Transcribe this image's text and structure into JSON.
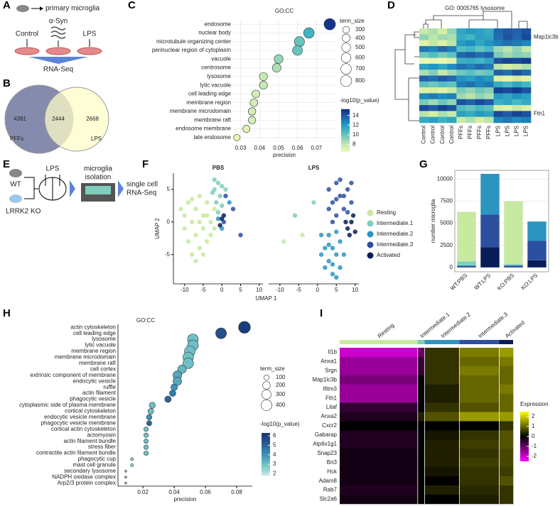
{
  "panel_labels": [
    "A",
    "B",
    "C",
    "D",
    "E",
    "F",
    "G",
    "H",
    "I"
  ],
  "diagram_a": {
    "top": "primary microglia",
    "treatment": "α-Syn",
    "control": "Control",
    "lps": "LPS",
    "output": "RNA-Seq"
  },
  "diagram_e": {
    "wt": "WT",
    "ko": "LRRK2 KO",
    "lps": "LPS",
    "isolation": [
      "microglia",
      "isolation"
    ],
    "output": [
      "single cell",
      "RNA-Seq"
    ]
  },
  "chart_data": [
    {
      "type": "venn",
      "sets": [
        "PFFs",
        "LPS"
      ],
      "values": [
        4381,
        2444,
        2668
      ],
      "colors": [
        "#5c6491",
        "#fdfcc8"
      ]
    },
    {
      "type": "dot",
      "title": "GO:CC",
      "xlabel": "precision",
      "categories": [
        "endosome",
        "nuclear body",
        "microtubule organizing center",
        "perinuclear region of cytoplasm",
        "vacuole",
        "centrosome",
        "lysosome",
        "lytic vacuole",
        "cell leading edge",
        "membrane region",
        "membrane microdomain",
        "membrane raft",
        "endosome membrane",
        "late endosome"
      ],
      "values": [
        0.077,
        0.066,
        0.061,
        0.06,
        0.05,
        0.049,
        0.042,
        0.042,
        0.038,
        0.037,
        0.036,
        0.036,
        0.033,
        0.028
      ],
      "size": [
        820,
        700,
        650,
        620,
        500,
        480,
        420,
        410,
        380,
        380,
        360,
        360,
        330,
        260
      ],
      "pvalue": [
        15,
        11,
        10,
        10,
        9,
        8.5,
        8,
        8,
        7.5,
        7.5,
        7.5,
        7.5,
        7,
        6.5
      ],
      "xlim": [
        0.026,
        0.08
      ],
      "xticks": [
        0.03,
        0.04,
        0.05,
        0.06,
        0.07
      ],
      "size_label": "term_size",
      "size_ticks": [
        300,
        400,
        500,
        600,
        700,
        800
      ],
      "color_label": "-log10(p_value)",
      "color_ticks": [
        8,
        10,
        12,
        14
      ],
      "clim": [
        6.5,
        15.3
      ],
      "colormap": [
        "#edf8b1",
        "#c7e9b4",
        "#7fcdbb",
        "#41b6c4",
        "#1d91c0",
        "#225ea8",
        "#0c2c84"
      ],
      "grid": true
    },
    {
      "type": "heatmap",
      "title": "GO: 0005765 lysosome",
      "columns": [
        "Control",
        "Control",
        "Control",
        "Control",
        "PFFs",
        "PFFs",
        "PFFs",
        "PFFs",
        "LPS",
        "LPS",
        "LPS",
        "LPS"
      ],
      "row_labels": [
        null,
        "Map1lc3b",
        null,
        null,
        null,
        null,
        null,
        null,
        null,
        null,
        null,
        null,
        null,
        null,
        "Fth1",
        null
      ],
      "values": [
        [
          -1.2,
          -1,
          -1.3,
          -0.8,
          0.3,
          0.5,
          0.4,
          0.2,
          1.2,
          1.4,
          1.3,
          1.5
        ],
        [
          -0.8,
          -1.1,
          -0.9,
          -1,
          0.2,
          0,
          0.4,
          0.3,
          1.1,
          1.5,
          1.2,
          1.6
        ],
        [
          -1.5,
          -1.2,
          -1.4,
          -1.1,
          0.5,
          0.7,
          0.3,
          0.6,
          0.9,
          1.1,
          1,
          0.8
        ],
        [
          1,
          0.8,
          1.2,
          0.9,
          -0.2,
          0,
          -0.4,
          -0.1,
          -0.9,
          -1.1,
          -0.8,
          -1.2
        ],
        [
          -0.5,
          -0.2,
          -0.6,
          -0.3,
          1.2,
          1.4,
          1.1,
          1.3,
          -0.6,
          -0.9,
          -0.7,
          -0.8
        ],
        [
          -1.8,
          -1.6,
          -1.7,
          -1.5,
          0.1,
          0.2,
          0,
          0.3,
          1.5,
          1.7,
          1.6,
          1.8
        ],
        [
          0.4,
          0.6,
          0.3,
          0.7,
          1.1,
          0.9,
          1.2,
          1,
          -1.1,
          -1.3,
          -1.2,
          -1
        ],
        [
          -1,
          -0.7,
          -1.2,
          -0.9,
          -0.5,
          -0.3,
          -0.6,
          -0.4,
          1.3,
          1.1,
          1.5,
          1.2
        ],
        [
          1.3,
          1.1,
          1.4,
          1.2,
          0.6,
          0.4,
          0.7,
          0.5,
          -1.4,
          -1.6,
          -1.3,
          -1.5
        ],
        [
          -0.3,
          -0.5,
          -0.2,
          -0.4,
          0.9,
          1.1,
          0.8,
          1,
          0.2,
          -0.1,
          0.3,
          0
        ],
        [
          -1.4,
          -1.3,
          -1.5,
          -1.2,
          -0.6,
          -0.8,
          -0.5,
          -0.7,
          1.7,
          1.6,
          1.8,
          1.5
        ],
        [
          0.8,
          1,
          0.7,
          0.9,
          -0.9,
          -1.1,
          -0.8,
          -1,
          0.5,
          0.3,
          0.6,
          0.4
        ],
        [
          -0.6,
          -0.9,
          -0.5,
          -0.8,
          1.5,
          1.3,
          1.6,
          1.4,
          0.1,
          0.3,
          -0.1,
          0.2
        ],
        [
          1.6,
          1.4,
          1.7,
          1.5,
          -0.2,
          -0.4,
          -0.1,
          -0.3,
          -1.3,
          -1.5,
          -1.2,
          -1.4
        ],
        [
          -1.1,
          -1.3,
          -1,
          -1.2,
          0.4,
          0.2,
          0.5,
          0.3,
          1.6,
          1.4,
          1.7,
          1.5
        ],
        [
          0.2,
          0.4,
          0.1,
          0.3,
          -1.2,
          -1,
          -1.3,
          -1.1,
          0.8,
          1,
          0.7,
          0.9
        ]
      ],
      "zlim": [
        -2,
        2
      ],
      "colormap": [
        "#f7fcb9",
        "#d9f0a3",
        "#7fcdbb",
        "#41b6c4",
        "#1d91c0",
        "#225ea8",
        "#0c2c84"
      ]
    },
    {
      "type": "scatter",
      "xlabel": "UMAP 1",
      "ylabel": "UMAP 2",
      "facets": [
        "PBS",
        "LPS"
      ],
      "xlim": [
        -13,
        11
      ],
      "ylim": [
        -9.5,
        7.5
      ],
      "xticks": [
        -10,
        -5,
        0,
        5,
        10
      ],
      "yticks": [
        -5,
        0,
        5
      ],
      "series": [
        {
          "name": "Resting",
          "color": "#c7e9a0",
          "points": [
            {
              "x": [
                -11,
                -10,
                -9,
                -9,
                -8,
                -8,
                -7,
                -7,
                -6,
                -6,
                -5,
                -5,
                -4,
                -4,
                -3,
                -3,
                -2,
                -10,
                -7,
                -5,
                -2,
                -8,
                -6,
                -4
              ],
              "y": [
                2,
                -1,
                3,
                -3,
                0,
                -5,
                2,
                -2,
                4,
                -4,
                1,
                -1,
                3,
                -3,
                0,
                -2,
                2,
                1,
                -6,
                -5,
                -1,
                3.5,
                0,
                1
              ]
            },
            {
              "x": [
                -9,
                -4
              ],
              "y": [
                -3,
                -2
              ]
            }
          ]
        },
        {
          "name": "Intermediate.1",
          "color": "#7fcdbb",
          "points": [
            {
              "x": [
                -2,
                -1,
                -1.5,
                -0.5,
                0,
                -2.5,
                -1,
                0,
                -2,
                1
              ],
              "y": [
                5,
                6,
                3,
                4,
                5.5,
                4.5,
                1.5,
                2.5,
                6.5,
                5
              ]
            },
            {
              "x": [
                -6,
                -1
              ],
              "y": [
                1,
                3
              ]
            }
          ]
        },
        {
          "name": "Intermediate.2",
          "color": "#2b95c0",
          "points": [
            {
              "x": [
                -1,
                0,
                2
              ],
              "y": [
                0.5,
                -1,
                3
              ]
            },
            {
              "x": [
                1,
                2,
                3,
                4,
                5,
                6,
                3,
                2,
                6,
                4,
                5,
                1,
                7,
                3,
                5,
                4
              ],
              "y": [
                -2,
                -4,
                -6,
                -8,
                -5,
                -3,
                -2,
                -7,
                -7,
                -4,
                -8.5,
                -5,
                -5,
                -3.5,
                -1.5,
                -6.5
              ]
            }
          ]
        },
        {
          "name": "Intermediate.3",
          "color": "#2c4fa0",
          "points": [
            {
              "x": [
                0.5,
                3,
                5,
                1
              ],
              "y": [
                0,
                2,
                -2,
                4
              ]
            },
            {
              "x": [
                3,
                4,
                5,
                6,
                7,
                8,
                9,
                5,
                6,
                4,
                7,
                8,
                3,
                9,
                5
              ],
              "y": [
                5,
                3,
                6,
                4,
                2,
                5,
                3,
                1,
                6.5,
                0,
                4,
                1.5,
                2,
                6,
                3.5
              ]
            }
          ]
        },
        {
          "name": "Activated",
          "color": "#081d58",
          "points": [
            {
              "x": [
                0,
                -0.5,
                0.5
              ],
              "y": [
                0.5,
                -0.5,
                1
              ]
            },
            {
              "x": [
                8,
                9,
                10,
                8.5,
                9.5,
                7.5
              ],
              "y": [
                -1,
                0,
                -1.5,
                -2,
                1,
                0
              ]
            }
          ]
        }
      ]
    },
    {
      "type": "bar",
      "ylabel": "number microglia",
      "categories": [
        "WT:PBS",
        "WT:LPS",
        "KO:PBS",
        "KO:LPS"
      ],
      "series": [
        {
          "color": "#081d58",
          "values": [
            50,
            2300,
            50,
            800
          ]
        },
        {
          "color": "#2c4fa0",
          "values": [
            100,
            3700,
            150,
            2200
          ]
        },
        {
          "color": "#2b95c0",
          "values": [
            80,
            4600,
            50,
            2200
          ]
        },
        {
          "color": "#7fcdbb",
          "values": [
            450,
            0,
            100,
            0
          ]
        },
        {
          "color": "#c7e9a0",
          "values": [
            5620,
            0,
            7150,
            0
          ]
        }
      ],
      "ylim": [
        -500,
        11000
      ],
      "yticks": [
        0,
        2500,
        5000,
        7500,
        10000
      ],
      "grid": true
    },
    {
      "type": "dot",
      "title": "GO:CC",
      "xlabel": "precision",
      "categories": [
        "actin cytoskeleton",
        "cell leading edge",
        "lysosome",
        "lytic vacuole",
        "membrane region",
        "membrane microdomain",
        "membrane raft",
        "cell cortex",
        "extrinsic component of membrane",
        "endocytic vesicle",
        "ruffle",
        "actin filament",
        "phagocytic vesicle",
        "cytoplasmic side of plasma membrane",
        "cortical cytoskeleton",
        "endocytic vesicle membrane",
        "phagocytic vesicle membrane",
        "cortical actin cytoskeleton",
        "actomyosin",
        "actin filament bundle",
        "stress fiber",
        "contractile actin filament bundle",
        "phagocytic cup",
        "mast cell granule",
        "secondary lysosome",
        "NADPH oxidase complex",
        "Arp2/3 protein complex"
      ],
      "values": [
        0.085,
        0.07,
        0.052,
        0.052,
        0.05,
        0.049,
        0.049,
        0.045,
        0.042,
        0.042,
        0.04,
        0.039,
        0.036,
        0.026,
        0.025,
        0.024,
        0.024,
        0.022,
        0.022,
        0.022,
        0.022,
        0.022,
        0.013,
        0.013,
        0.009,
        0.009,
        0.009
      ],
      "size": [
        480,
        400,
        400,
        400,
        390,
        380,
        380,
        250,
        260,
        250,
        150,
        140,
        140,
        130,
        110,
        100,
        90,
        70,
        70,
        70,
        70,
        70,
        30,
        30,
        15,
        15,
        15
      ],
      "pvalue": [
        6,
        5.5,
        3,
        3,
        3,
        3,
        3,
        3.2,
        3.5,
        3.5,
        4,
        4.5,
        5,
        3,
        3,
        4,
        5,
        3,
        3,
        3,
        3,
        3,
        2.5,
        2.5,
        2.5,
        2.5,
        2.5
      ],
      "xlim": [
        0.004,
        0.09
      ],
      "xticks": [
        0.02,
        0.04,
        0.06,
        0.08
      ],
      "size_label": "term_size",
      "size_ticks": [
        100,
        200,
        300,
        400
      ],
      "color_label": "-log10(p_value)",
      "color_ticks": [
        2,
        3,
        4,
        5,
        6
      ],
      "clim": [
        1.8,
        6.3
      ],
      "colormap": [
        "#c2e9e6",
        "#73c4c6",
        "#3a8fb7",
        "#2b5c98",
        "#14306b"
      ],
      "grid": false
    },
    {
      "type": "heatmap",
      "colorbar_label": "Expression",
      "clusters": [
        "Resting",
        "Intermediate.1",
        "Intermediate.2",
        "Intermediate.3",
        "Activated"
      ],
      "cluster_colors": [
        "#c7e9a0",
        "#7fcdbb",
        "#2b95c0",
        "#2c4fa0",
        "#081d58"
      ],
      "row_labels": [
        "Il1b",
        "Anxa1",
        "Srgn",
        "Map1lc3b",
        "Ifitm3",
        "Fth1",
        "Litaf",
        "Anxa2",
        "Cxcr2",
        "Gabarap",
        "Atp6v1g1",
        "Snap23",
        "Bri3",
        "Hck",
        "Adam8",
        "Rab7",
        "Slc2a6"
      ],
      "values": [
        [
          -2,
          -1,
          0.5,
          1.2,
          1.5
        ],
        [
          -1.5,
          -0.5,
          0.5,
          1,
          1.2
        ],
        [
          -1.5,
          -0.5,
          0.5,
          1.2,
          1
        ],
        [
          -1.2,
          0,
          0.5,
          1,
          1
        ],
        [
          -1.5,
          0,
          0.3,
          1,
          1.2
        ],
        [
          -1.5,
          0,
          0.3,
          1,
          1
        ],
        [
          -0.5,
          0,
          0.5,
          0.8,
          1
        ],
        [
          -0.3,
          0.3,
          0.8,
          1.5,
          1.5
        ],
        [
          0,
          0,
          0,
          0,
          0.5
        ],
        [
          -0.3,
          0,
          0.2,
          0.5,
          0.8
        ],
        [
          -0.3,
          0,
          0.3,
          0.6,
          0.8
        ],
        [
          -0.2,
          0,
          0.3,
          0.5,
          0.7
        ],
        [
          -0.2,
          0,
          0.3,
          0.6,
          0.7
        ],
        [
          -0.2,
          0,
          0.2,
          0.5,
          0.6
        ],
        [
          -0.2,
          0,
          0,
          0.5,
          0.8
        ],
        [
          -0.3,
          0,
          0.3,
          0.4,
          0.5
        ],
        [
          -0.2,
          0,
          0,
          0.3,
          0.5
        ]
      ],
      "zlim": [
        -2.5,
        2.5
      ],
      "zticks": [
        2,
        1,
        0,
        -1,
        -2
      ],
      "colormap": [
        "#ff00ff",
        "#000000",
        "#ffff00"
      ]
    }
  ]
}
